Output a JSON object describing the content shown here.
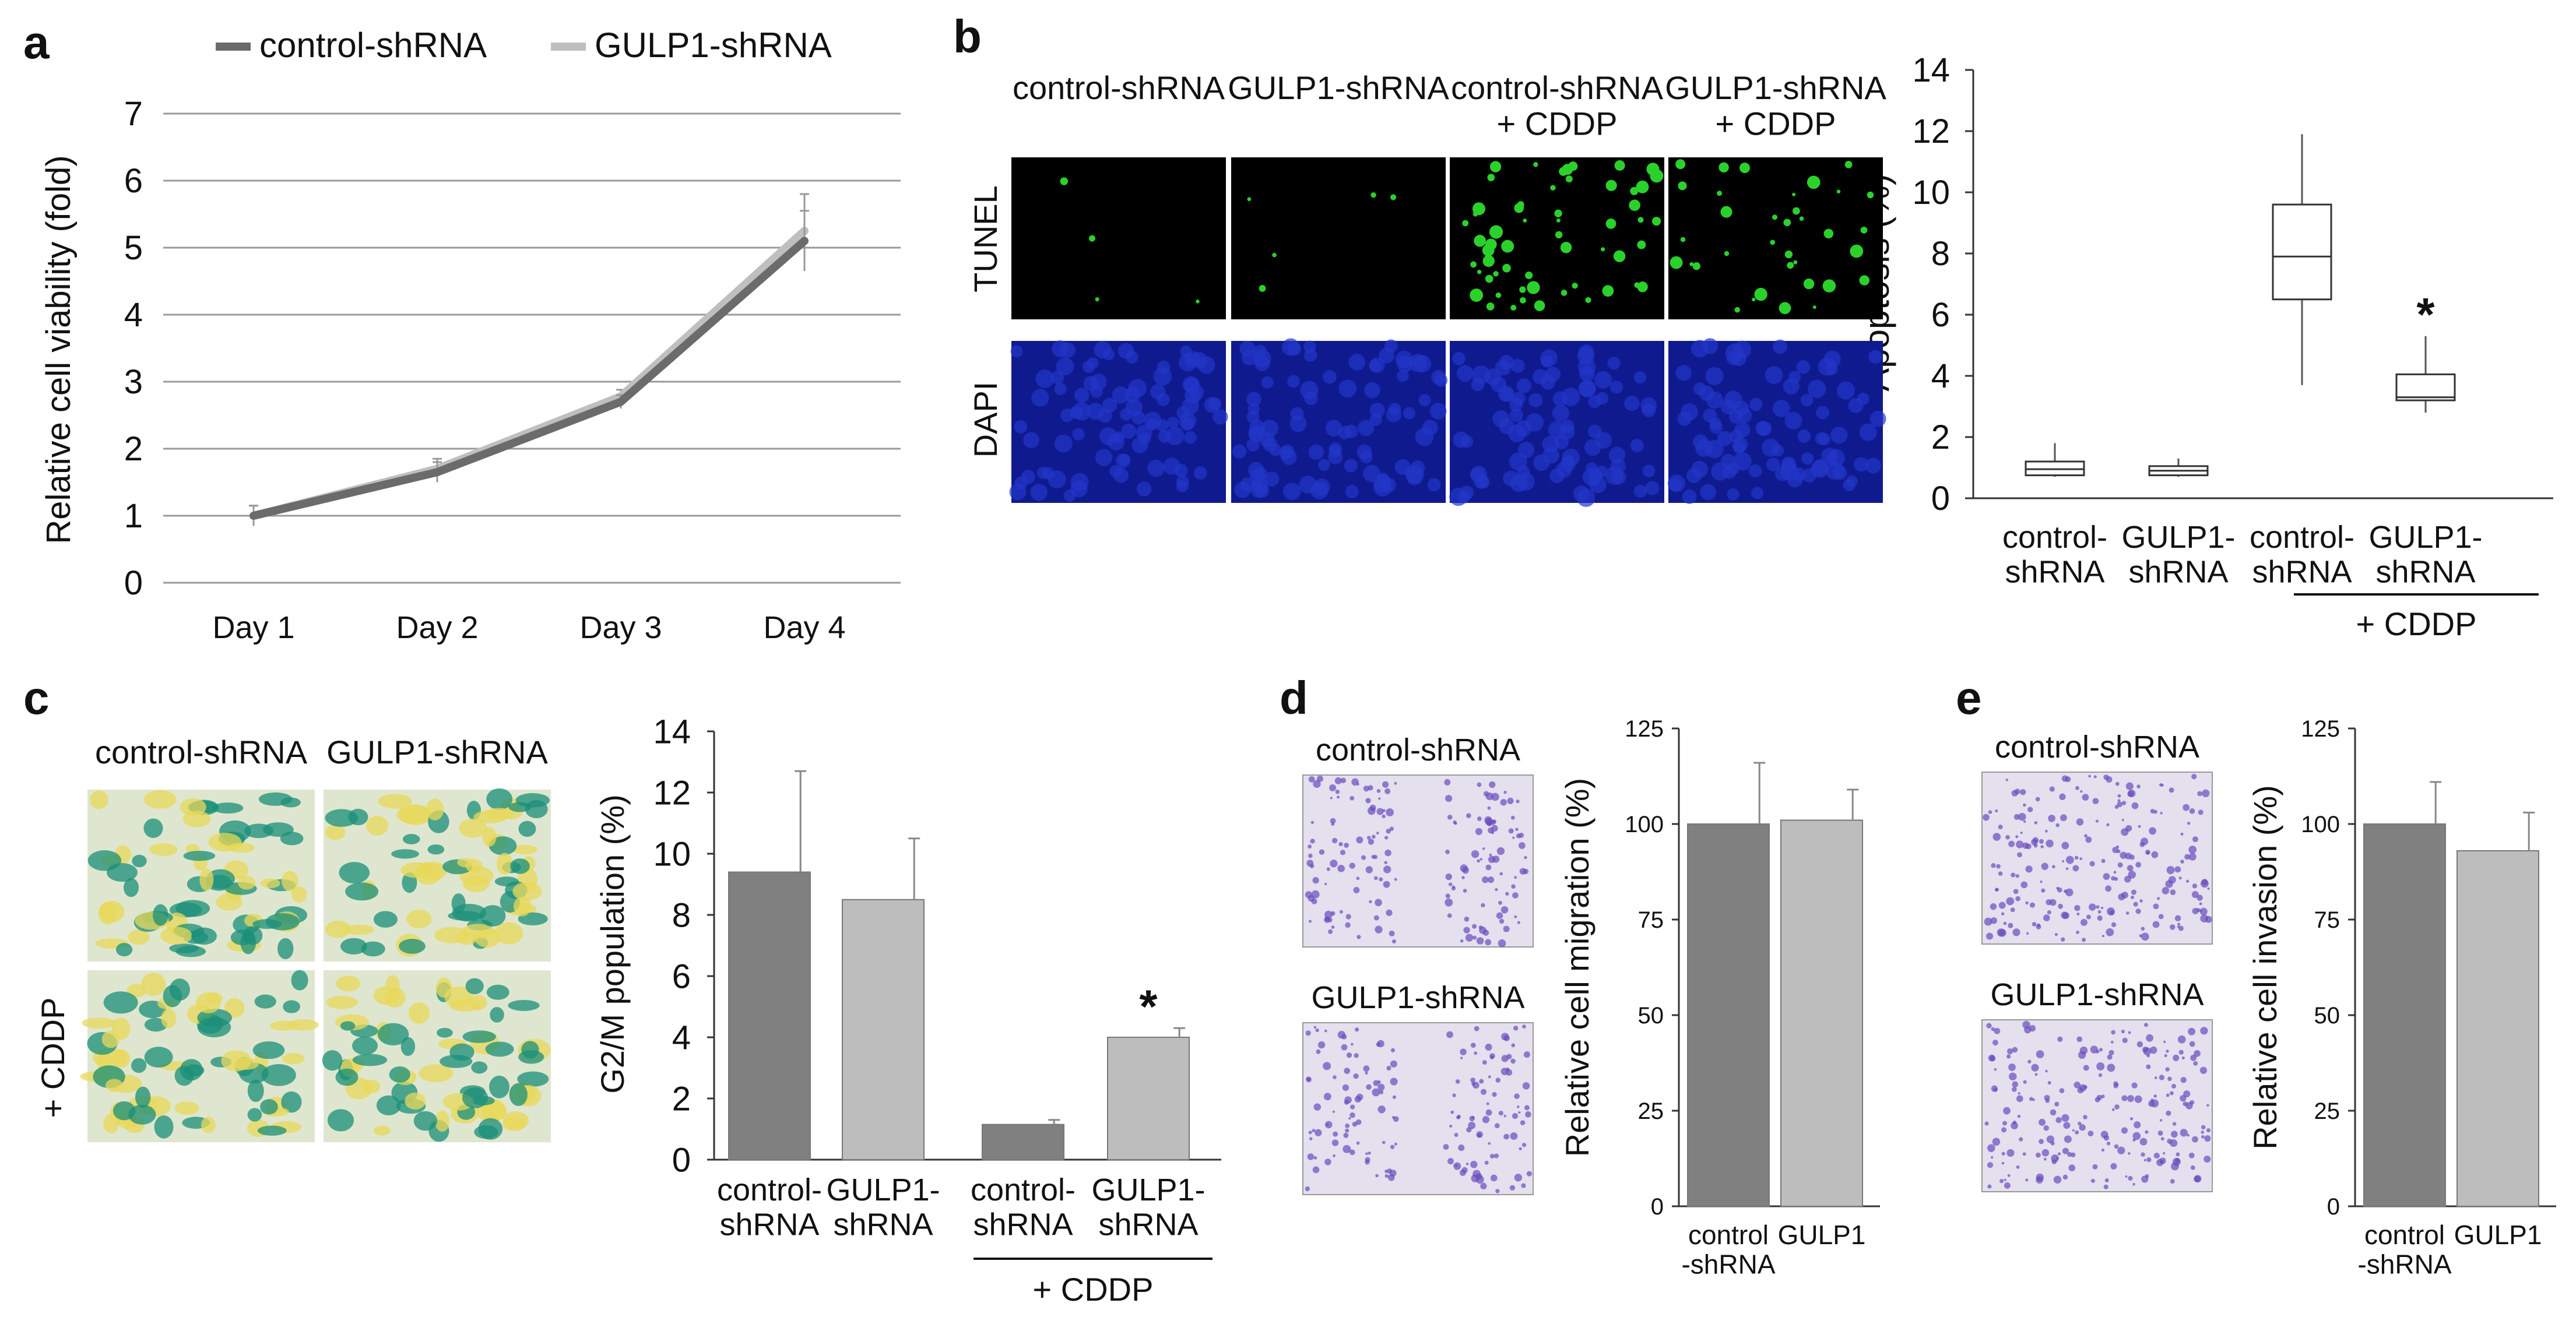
{
  "panels": {
    "a": "a",
    "b": "b",
    "c": "c",
    "d": "d",
    "e": "e"
  },
  "colors": {
    "dark": "#6b6b6b",
    "light": "#bfbfbf",
    "bar_dark": "#808080",
    "bar_light": "#bdbdbd",
    "tunel_bg": "#000000",
    "tunel_dot": "#2bd12b",
    "dapi_bg": "#101a8f",
    "dapi_cell": "#2236c8",
    "stain_green": "#1a8f78",
    "stain_yellow": "#e8d85a",
    "crystal_violet": "#6a4bbf"
  },
  "microscopy": {
    "b_columns": [
      "control-shRNA",
      "GULP1-shRNA",
      "control-shRNA\n+ CDDP",
      "GULP1-shRNA\n+ CDDP"
    ],
    "b_rows": [
      "TUNEL",
      "DAPI"
    ],
    "c_columns": [
      "control-shRNA",
      "GULP1-shRNA"
    ],
    "c_row": "+ CDDP",
    "d_labels": [
      "control-shRNA",
      "GULP1-shRNA"
    ],
    "e_labels": [
      "control-shRNA",
      "GULP1-shRNA"
    ]
  },
  "chart_data": [
    {
      "id": "a",
      "type": "line",
      "title": "",
      "xlabel": "",
      "ylabel": "Relative cell viability (fold)",
      "categories": [
        "Day 1",
        "Day 2",
        "Day 3",
        "Day 4"
      ],
      "series": [
        {
          "name": "control-shRNA",
          "values": [
            1.0,
            1.65,
            2.7,
            5.1
          ],
          "errors": [
            0.15,
            0.15,
            0.1,
            0.45
          ]
        },
        {
          "name": "GULP1-shRNA",
          "values": [
            1.0,
            1.7,
            2.78,
            5.25
          ],
          "errors": [
            0.15,
            0.15,
            0.1,
            0.55
          ]
        }
      ],
      "ylim": [
        0,
        7
      ],
      "yticks": [
        0,
        1,
        2,
        3,
        4,
        5,
        6,
        7
      ],
      "grid": true,
      "legend": "top"
    },
    {
      "id": "b",
      "type": "box",
      "ylabel": "Apoptosis (%)",
      "categories": [
        "control-\nshRNA",
        "GULP1-\nshRNA",
        "control-\nshRNA",
        "GULP1-\nshRNA"
      ],
      "group_label": "+ CDDP",
      "boxes": [
        {
          "min": 0.7,
          "q1": 0.75,
          "median": 0.95,
          "q3": 1.2,
          "max": 1.8
        },
        {
          "min": 0.7,
          "q1": 0.75,
          "median": 0.9,
          "q3": 1.05,
          "max": 1.3
        },
        {
          "min": 3.7,
          "q1": 6.5,
          "median": 7.9,
          "q3": 9.6,
          "max": 11.9
        },
        {
          "min": 2.8,
          "q1": 3.2,
          "median": 3.3,
          "q3": 4.05,
          "max": 5.3
        }
      ],
      "significance": [
        "",
        "",
        "",
        "*"
      ],
      "ylim": [
        0,
        14
      ],
      "yticks": [
        0,
        2,
        4,
        6,
        8,
        10,
        12,
        14
      ]
    },
    {
      "id": "c",
      "type": "bar",
      "ylabel": "G2/M population (%)",
      "categories": [
        "control-\nshRNA",
        "GULP1-\nshRNA",
        "control-\nshRNA",
        "GULP1-\nshRNA"
      ],
      "group_label": "+ CDDP",
      "values": [
        9.4,
        8.5,
        1.15,
        4.0
      ],
      "errors": [
        3.3,
        2.0,
        0.15,
        0.3
      ],
      "significance": [
        "",
        "",
        "",
        "*"
      ],
      "ylim": [
        0,
        14
      ],
      "yticks": [
        0,
        2,
        4,
        6,
        8,
        10,
        12,
        14
      ]
    },
    {
      "id": "d",
      "type": "bar",
      "ylabel": "Relative cell migration (%)",
      "categories": [
        "control\n-shRNA",
        "GULP1"
      ],
      "values": [
        100,
        101
      ],
      "errors": [
        16,
        8
      ],
      "ylim": [
        0,
        125
      ],
      "yticks": [
        0,
        25,
        50,
        75,
        100,
        125
      ]
    },
    {
      "id": "e",
      "type": "bar",
      "ylabel": "Relative cell invasion (%)",
      "categories": [
        "control\n-shRNA",
        "GULP1"
      ],
      "values": [
        100,
        93
      ],
      "errors": [
        11,
        10
      ],
      "ylim": [
        0,
        125
      ],
      "yticks": [
        0,
        25,
        50,
        75,
        100,
        125
      ]
    }
  ]
}
